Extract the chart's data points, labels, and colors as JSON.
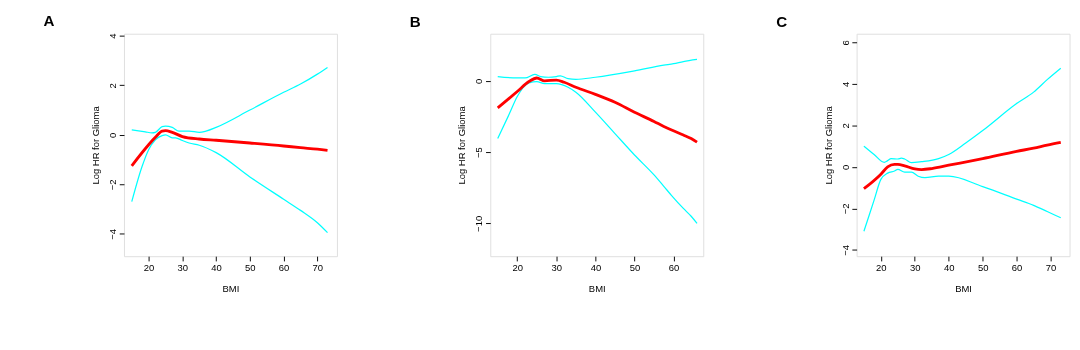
{
  "chart_data": [
    {
      "type": "line",
      "title": "A",
      "xlabel": "BMI",
      "ylabel": "Log HR for Glioma",
      "xlim": [
        12.7,
        75.8
      ],
      "ylim": [
        -4.9,
        4.08
      ],
      "xticks": [
        20,
        30,
        40,
        50,
        60,
        70
      ],
      "yticks": [
        -4,
        -2,
        0,
        2,
        4
      ],
      "grid": false,
      "marker": "none",
      "line_style": "solid",
      "series": [
        {
          "color": "#00ffff",
          "x": [
            15,
            19,
            21,
            22,
            24,
            25,
            27,
            29,
            32,
            35,
            37,
            40,
            50,
            60,
            65,
            70,
            73
          ],
          "values": [
            0.2,
            0.12,
            0.08,
            0.1,
            0.33,
            0.35,
            0.3,
            0.15,
            0.15,
            0.1,
            0.15,
            0.3,
            1.0,
            1.72,
            2.05,
            2.45,
            2.72
          ]
        },
        {
          "color": "#00ffff",
          "x": [
            15,
            18,
            20,
            22,
            24,
            25,
            27,
            28,
            30,
            32,
            35,
            40,
            50,
            60,
            65,
            70,
            73
          ],
          "values": [
            -2.7,
            -1.3,
            -0.6,
            -0.2,
            -0.03,
            0.0,
            -0.12,
            -0.12,
            -0.23,
            -0.33,
            -0.42,
            -0.72,
            -1.7,
            -2.6,
            -3.05,
            -3.55,
            -3.95
          ]
        },
        {
          "color": "#ff0000",
          "x": [
            15,
            20,
            22,
            24,
            25,
            27,
            30,
            35,
            40,
            50,
            60,
            65,
            70,
            73
          ],
          "values": [
            -1.25,
            -0.4,
            -0.1,
            0.15,
            0.17,
            0.1,
            -0.07,
            -0.17,
            -0.22,
            -0.33,
            -0.45,
            -0.52,
            -0.58,
            -0.63
          ]
        }
      ]
    },
    {
      "type": "line",
      "title": "B",
      "xlabel": "BMI",
      "ylabel": "Log HR for Glioma",
      "xlim": [
        13.1,
        67.6
      ],
      "ylim": [
        -12.3,
        3.3
      ],
      "xticks": [
        20,
        30,
        40,
        50,
        60
      ],
      "yticks": [
        -10,
        -5,
        0
      ],
      "grid": false,
      "marker": "none",
      "line_style": "solid",
      "series": [
        {
          "color": "#00ffff",
          "x": [
            15,
            20,
            22,
            24.5,
            26,
            28,
            30,
            31,
            33,
            35,
            40,
            50,
            57.5,
            60,
            62.5,
            66
          ],
          "values": [
            0.3,
            0.2,
            0.2,
            0.45,
            0.3,
            0.25,
            0.3,
            0.35,
            0.15,
            0.1,
            0.25,
            0.7,
            1.1,
            1.2,
            1.35,
            1.5
          ]
        },
        {
          "color": "#00ffff",
          "x": [
            15,
            18,
            20,
            23,
            25,
            27,
            30,
            33,
            35,
            40,
            45,
            50,
            55,
            57.5,
            59.5,
            62.5,
            64.5,
            66
          ],
          "values": [
            -4.05,
            -2.3,
            -1.1,
            -0.15,
            -0.05,
            -0.2,
            -0.2,
            -0.45,
            -0.8,
            -2.2,
            -3.7,
            -5.2,
            -6.6,
            -7.4,
            -8.05,
            -8.95,
            -9.5,
            -10.0
          ]
        },
        {
          "color": "#ff0000",
          "x": [
            15,
            20,
            23,
            25,
            27,
            30,
            32,
            35,
            40,
            45,
            50,
            55,
            57.5,
            59.5,
            62.5,
            64.5,
            66
          ],
          "values": [
            -1.9,
            -0.75,
            -0.05,
            0.2,
            0.0,
            0.05,
            -0.1,
            -0.45,
            -0.95,
            -1.5,
            -2.2,
            -2.85,
            -3.2,
            -3.45,
            -3.8,
            -4.05,
            -4.3
          ]
        }
      ]
    },
    {
      "type": "line",
      "title": "C",
      "xlabel": "BMI",
      "ylabel": "Log HR for Glioma",
      "xlim": [
        12.85,
        75.6
      ],
      "ylim": [
        -4.3,
        6.41
      ],
      "xticks": [
        20,
        30,
        40,
        50,
        60,
        70
      ],
      "yticks": [
        -4,
        -2,
        0,
        2,
        4,
        6
      ],
      "grid": false,
      "marker": "none",
      "line_style": "solid",
      "series": [
        {
          "color": "#00ffff",
          "x": [
            15,
            18,
            21,
            22,
            23,
            25,
            26,
            27,
            29,
            32,
            37,
            40,
            45,
            50,
            60,
            65,
            69,
            73
          ],
          "values": [
            1.0,
            0.6,
            0.22,
            0.3,
            0.4,
            0.38,
            0.42,
            0.38,
            0.2,
            0.25,
            0.4,
            0.6,
            1.15,
            1.75,
            3.05,
            3.6,
            4.2,
            4.75
          ]
        },
        {
          "color": "#00ffff",
          "x": [
            15,
            18,
            20,
            22,
            24,
            25,
            27,
            29,
            31,
            33,
            37,
            40,
            50,
            60,
            65,
            69,
            73
          ],
          "values": [
            -3.1,
            -1.6,
            -0.6,
            -0.3,
            -0.2,
            -0.12,
            -0.25,
            -0.25,
            -0.45,
            -0.52,
            -0.45,
            -0.45,
            -0.95,
            -1.55,
            -1.85,
            -2.15,
            -2.45
          ]
        },
        {
          "color": "#ff0000",
          "x": [
            15,
            20,
            22,
            24,
            25,
            27,
            30,
            32,
            35,
            40,
            50,
            60,
            65,
            69,
            73
          ],
          "values": [
            -1.05,
            -0.35,
            0.0,
            0.12,
            0.12,
            0.05,
            -0.1,
            -0.13,
            -0.08,
            0.08,
            0.4,
            0.75,
            0.9,
            1.05,
            1.18
          ]
        }
      ]
    }
  ]
}
